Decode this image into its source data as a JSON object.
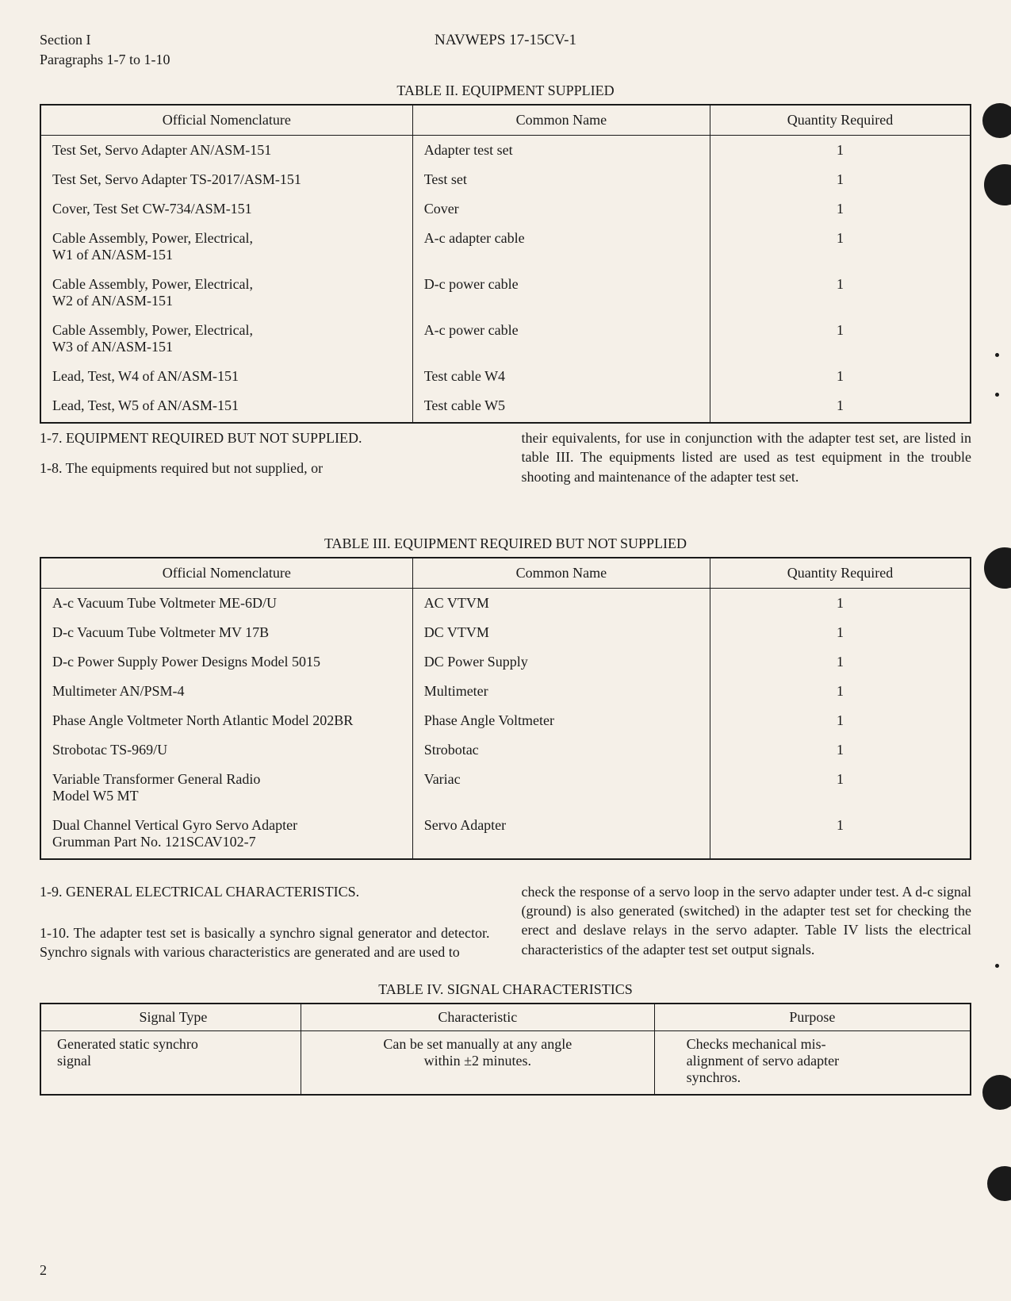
{
  "header": {
    "section": "Section I",
    "paragraphs": "Paragraphs 1-7 to 1-10",
    "doc_number": "NAVWEPS 17-15CV-1"
  },
  "table2": {
    "title": "TABLE II.  EQUIPMENT SUPPLIED",
    "headers": [
      "Official Nomenclature",
      "Common Name",
      "Quantity Required"
    ],
    "rows": [
      [
        "Test Set, Servo Adapter AN/ASM-151",
        "Adapter test set",
        "1"
      ],
      [
        "Test Set, Servo Adapter TS-2017/ASM-151",
        "Test set",
        "1"
      ],
      [
        "Cover, Test Set CW-734/ASM-151",
        "Cover",
        "1"
      ],
      [
        "Cable Assembly, Power, Electrical,\nW1 of AN/ASM-151",
        "A-c adapter cable",
        "1"
      ],
      [
        "Cable Assembly, Power, Electrical,\nW2 of AN/ASM-151",
        "D-c power cable",
        "1"
      ],
      [
        "Cable Assembly, Power, Electrical,\nW3 of AN/ASM-151",
        "A-c power cable",
        "1"
      ],
      [
        "Lead, Test, W4 of AN/ASM-151",
        "Test cable W4",
        "1"
      ],
      [
        "Lead, Test, W5 of AN/ASM-151",
        "Test cable W5",
        "1"
      ]
    ]
  },
  "para_1_7_heading": "1-7. EQUIPMENT REQUIRED BUT NOT SUPPLIED.",
  "para_1_8": "1-8. The equipments required but not supplied, or",
  "para_1_8_right": "their equivalents, for use in conjunction with the adapter test set, are listed in table III.  The equipments listed are used as test equipment in the trouble shooting and maintenance of the adapter test set.",
  "table3": {
    "title": "TABLE III.  EQUIPMENT REQUIRED BUT NOT SUPPLIED",
    "headers": [
      "Official Nomenclature",
      "Common Name",
      "Quantity Required"
    ],
    "rows": [
      [
        "A-c Vacuum Tube Voltmeter ME-6D/U",
        "AC VTVM",
        "1"
      ],
      [
        "D-c Vacuum Tube Voltmeter MV 17B",
        "DC VTVM",
        "1"
      ],
      [
        "D-c Power Supply Power Designs Model 5015",
        "DC Power Supply",
        "1"
      ],
      [
        "Multimeter AN/PSM-4",
        "Multimeter",
        "1"
      ],
      [
        "Phase Angle Voltmeter North Atlantic Model 202BR",
        "Phase Angle Voltmeter",
        "1"
      ],
      [
        "Strobotac TS-969/U",
        "Strobotac",
        "1"
      ],
      [
        "Variable Transformer General Radio\nModel W5 MT",
        "Variac",
        "1"
      ],
      [
        "Dual Channel Vertical Gyro Servo Adapter\nGrumman Part No. 121SCAV102-7",
        "Servo Adapter",
        "1"
      ]
    ]
  },
  "para_1_9_heading": "1-9. GENERAL ELECTRICAL CHARACTERISTICS.",
  "para_1_10": "1-10. The adapter test set is basically a synchro signal generator and detector.  Synchro signals with various characteristics are generated and are used to",
  "para_1_10_right": "check the response of a servo loop in the servo adapter under test.  A d-c signal (ground) is also generated (switched) in the adapter test set for checking the erect and deslave relays in the servo adapter. Table IV lists the electrical characteristics of the adapter test set output signals.",
  "table4": {
    "title": "TABLE IV.  SIGNAL CHARACTERISTICS",
    "headers": [
      "Signal Type",
      "Characteristic",
      "Purpose"
    ],
    "rows": [
      [
        "Generated static synchro\n  signal",
        "Can be set manually at any angle\nwithin ±2 minutes.",
        "Checks mechanical mis-\nalignment of servo adapter\nsynchros."
      ]
    ]
  },
  "page_number": "2"
}
